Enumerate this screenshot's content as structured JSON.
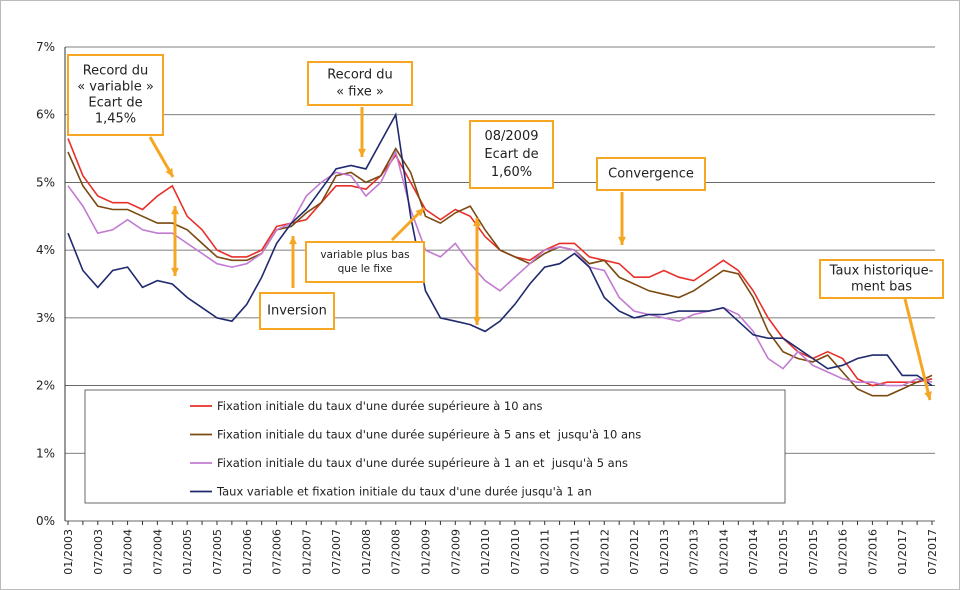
{
  "chart_data": {
    "type": "line",
    "categories": [
      "01/2003",
      null,
      "07/2003",
      null,
      "01/2004",
      null,
      "07/2004",
      null,
      "01/2005",
      null,
      "07/2005",
      null,
      "01/2006",
      null,
      "07/2006",
      null,
      "01/2007",
      null,
      "07/2007",
      null,
      "01/2008",
      null,
      "07/2008",
      null,
      "01/2009",
      null,
      "07/2009",
      null,
      "01/2010",
      null,
      "07/2010",
      null,
      "01/2011",
      null,
      "07/2011",
      null,
      "01/2012",
      null,
      "07/2012",
      null,
      "01/2013",
      null,
      "07/2013",
      null,
      "01/2014",
      null,
      "07/2014",
      null,
      "01/2015",
      null,
      "07/2015",
      null,
      "01/2016",
      null,
      "07/2016",
      null,
      "01/2017",
      null,
      "07/2017"
    ],
    "series": [
      {
        "name": "Fixation initiale du taux d'une durée supérieure à 10 ans",
        "color": "#e8302a",
        "values": [
          5.65,
          5.1,
          4.8,
          4.7,
          4.7,
          4.6,
          4.8,
          4.95,
          4.5,
          4.3,
          4.0,
          3.9,
          3.9,
          4.0,
          4.35,
          4.4,
          4.45,
          4.7,
          4.95,
          4.95,
          4.9,
          5.1,
          5.4,
          5.0,
          4.6,
          4.45,
          4.6,
          4.5,
          4.2,
          4.0,
          3.9,
          3.85,
          4.0,
          4.1,
          4.1,
          3.9,
          3.85,
          3.8,
          3.6,
          3.6,
          3.7,
          3.6,
          3.55,
          3.7,
          3.85,
          3.7,
          3.4,
          3.0,
          2.7,
          2.5,
          2.4,
          2.5,
          2.4,
          2.1,
          2.0,
          2.05,
          2.05,
          2.05,
          2.1
        ]
      },
      {
        "name": "Fixation initiale du taux d'une durée supérieure à 5 ans et  jusqu'à 10 ans",
        "color": "#7a4a10",
        "values": [
          5.45,
          4.95,
          4.65,
          4.6,
          4.6,
          4.5,
          4.4,
          4.4,
          4.3,
          4.1,
          3.9,
          3.85,
          3.85,
          3.95,
          4.3,
          4.35,
          4.55,
          4.7,
          5.1,
          5.15,
          5.0,
          5.1,
          5.5,
          5.15,
          4.5,
          4.4,
          4.55,
          4.65,
          4.3,
          4.0,
          3.9,
          3.8,
          3.95,
          4.05,
          4.0,
          3.8,
          3.85,
          3.6,
          3.5,
          3.4,
          3.35,
          3.3,
          3.4,
          3.55,
          3.7,
          3.65,
          3.3,
          2.8,
          2.5,
          2.4,
          2.35,
          2.45,
          2.2,
          1.95,
          1.85,
          1.85,
          1.95,
          2.05,
          2.15
        ]
      },
      {
        "name": "Fixation initiale du taux d'une durée supérieure à 1 an et  jusqu'à 5 ans",
        "color": "#c27bd0",
        "values": [
          4.95,
          4.65,
          4.25,
          4.3,
          4.45,
          4.3,
          4.25,
          4.25,
          4.1,
          3.95,
          3.8,
          3.75,
          3.8,
          3.95,
          4.3,
          4.4,
          4.8,
          5.0,
          5.15,
          5.1,
          4.8,
          5.0,
          5.45,
          4.6,
          4.0,
          3.9,
          4.1,
          3.8,
          3.55,
          3.4,
          3.6,
          3.8,
          4.0,
          4.05,
          4.0,
          3.75,
          3.7,
          3.3,
          3.1,
          3.05,
          3.0,
          2.95,
          3.05,
          3.1,
          3.15,
          3.05,
          2.8,
          2.4,
          2.25,
          2.5,
          2.3,
          2.2,
          2.1,
          2.05,
          2.05,
          2.0,
          2.0,
          2.1,
          2.05
        ]
      },
      {
        "name": "Taux variable et fixation initiale du taux d'une durée jusqu'à 1 an",
        "color": "#1f2a6e",
        "values": [
          4.25,
          3.7,
          3.45,
          3.7,
          3.75,
          3.45,
          3.55,
          3.5,
          3.3,
          3.15,
          3.0,
          2.95,
          3.2,
          3.6,
          4.1,
          4.4,
          4.6,
          4.9,
          5.2,
          5.25,
          5.2,
          5.6,
          6.0,
          4.5,
          3.4,
          3.0,
          2.95,
          2.9,
          2.8,
          2.95,
          3.2,
          3.5,
          3.75,
          3.8,
          3.95,
          3.75,
          3.3,
          3.1,
          3.0,
          3.05,
          3.05,
          3.1,
          3.1,
          3.1,
          3.15,
          2.95,
          2.75,
          2.7,
          2.7,
          2.55,
          2.4,
          2.25,
          2.3,
          2.4,
          2.45,
          2.45,
          2.15,
          2.15,
          2.0
        ]
      }
    ],
    "ylim": [
      0,
      7
    ],
    "yticks": [
      {
        "value": 0,
        "label": "0%"
      },
      {
        "value": 1,
        "label": "1%"
      },
      {
        "value": 2,
        "label": "2%"
      },
      {
        "value": 3,
        "label": "3%"
      },
      {
        "value": 4,
        "label": "4%"
      },
      {
        "value": 5,
        "label": "5%"
      },
      {
        "value": 6,
        "label": "6%"
      },
      {
        "value": 7,
        "label": "7%"
      }
    ],
    "grid": true,
    "annotations": [
      {
        "lines": [
          "Record du",
          "« variable »",
          "Ecart de",
          "1,45%"
        ]
      },
      {
        "lines": [
          "Record du",
          "« fixe »"
        ]
      },
      {
        "lines": [
          "08/2009",
          "Ecart de",
          "1,60%"
        ]
      },
      {
        "lines": [
          "Convergence"
        ]
      },
      {
        "lines": [
          "variable plus bas",
          "que le fixe"
        ]
      },
      {
        "lines": [
          "Inversion"
        ]
      },
      {
        "lines": [
          "Taux historique-",
          "ment bas"
        ]
      }
    ]
  }
}
